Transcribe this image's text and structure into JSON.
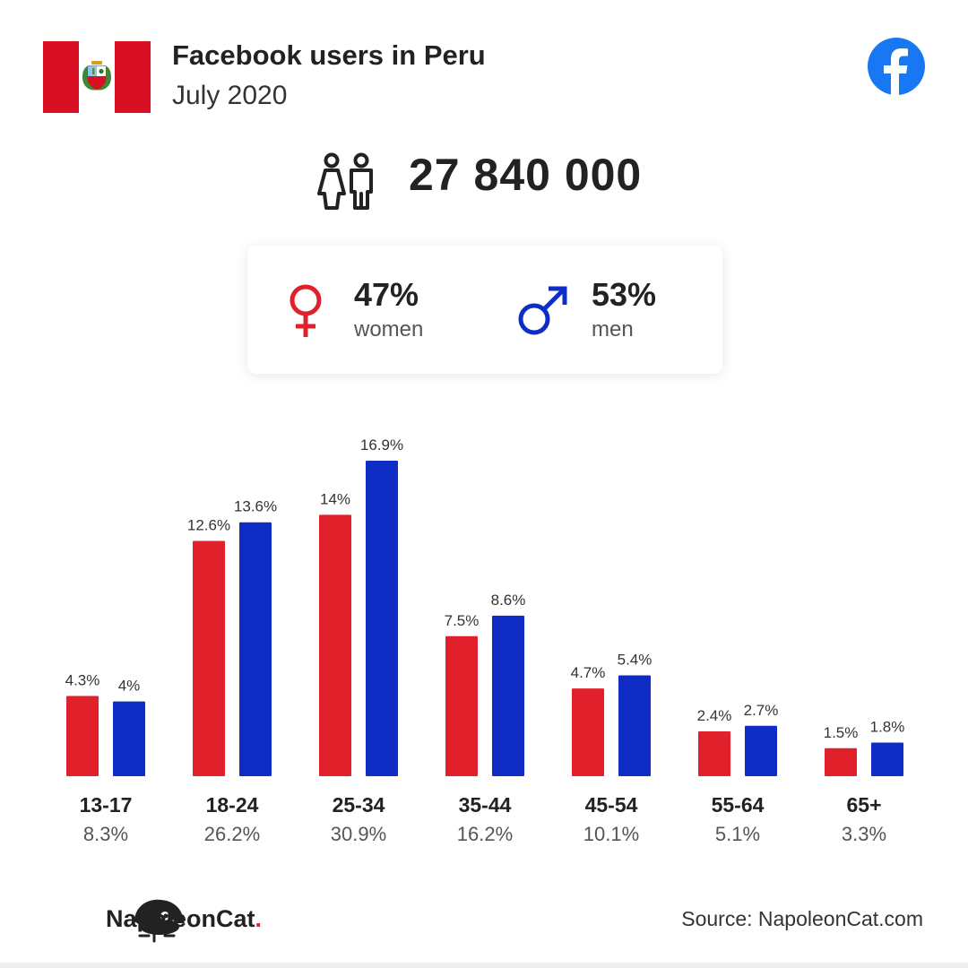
{
  "header": {
    "title": "Facebook users in Peru",
    "subtitle": "July 2020"
  },
  "icons": {
    "flag": "peru-flag",
    "brand_logo": "facebook-logo-icon",
    "users": "users-icon",
    "female": "female-symbol-icon",
    "male": "male-symbol-icon",
    "napoleoncat": "napoleoncat-logo"
  },
  "total_users": "27 840 000",
  "gender": {
    "women": {
      "pct": "47%",
      "label": "women"
    },
    "men": {
      "pct": "53%",
      "label": "men"
    }
  },
  "colors": {
    "women": "#e0202a",
    "men": "#0f2cc4",
    "facebook": "#1877f2",
    "flag_red": "#d91023"
  },
  "chart_data": {
    "type": "bar",
    "categories": [
      "13-17",
      "18-24",
      "25-34",
      "35-44",
      "45-54",
      "55-64",
      "65+"
    ],
    "totals": [
      "8.3%",
      "26.2%",
      "30.9%",
      "16.2%",
      "10.1%",
      "5.1%",
      "3.3%"
    ],
    "series": [
      {
        "key": "women",
        "values": [
          4.3,
          12.6,
          14,
          7.5,
          4.7,
          2.4,
          1.5
        ],
        "labels": [
          "4.3%",
          "12.6%",
          "14%",
          "7.5%",
          "4.7%",
          "2.4%",
          "1.5%"
        ]
      },
      {
        "key": "men",
        "values": [
          4,
          13.6,
          16.9,
          8.6,
          5.4,
          2.7,
          1.8
        ],
        "labels": [
          "4%",
          "13.6%",
          "16.9%",
          "8.6%",
          "5.4%",
          "2.7%",
          "1.8%"
        ]
      }
    ],
    "ylim": [
      0,
      16.9
    ],
    "grid": false,
    "legend": "none"
  },
  "footer": {
    "brand": "NapoleonCat",
    "brand_dot": ".",
    "source": "Source: NapoleonCat.com"
  }
}
